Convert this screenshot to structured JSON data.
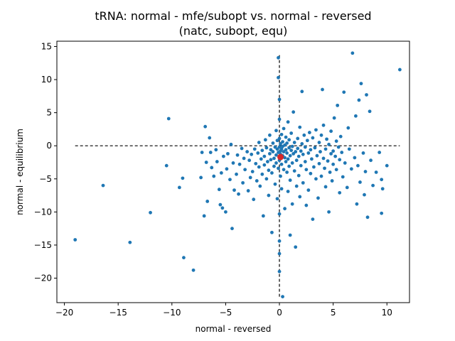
{
  "chart_data": {
    "type": "scatter",
    "title_lines": [
      "tRNA: normal - mfe/subopt vs. normal - reversed",
      "(natc, subopt, equ)"
    ],
    "xlabel": "normal - reversed",
    "ylabel": "normal - equilibrium",
    "xlim": [
      -20.7,
      12.1
    ],
    "ylim": [
      -23.7,
      15.8
    ],
    "x_ticks": [
      -20,
      -15,
      -10,
      -5,
      0,
      5,
      10
    ],
    "y_ticks": [
      -20,
      -15,
      -10,
      -5,
      0,
      5,
      10,
      15
    ],
    "reference_lines": {
      "horizontal": {
        "y": 0,
        "x_range": [
          -19.0,
          11.2
        ],
        "style": "dashed",
        "color": "#000000"
      },
      "vertical": {
        "x": 0,
        "y_range": [
          -22.8,
          14.0
        ],
        "style": "dashed",
        "color": "#000000"
      }
    },
    "point_color": "#1f77b4",
    "highlight_color": "#d62728",
    "highlight_point": {
      "x": 0.1,
      "y": -1.7
    },
    "points": [
      [
        -19.0,
        -14.2
      ],
      [
        -16.4,
        -6.0
      ],
      [
        -13.9,
        -14.6
      ],
      [
        -12.0,
        -10.1
      ],
      [
        -10.3,
        4.1
      ],
      [
        -10.5,
        -3.0
      ],
      [
        -9.3,
        -6.3
      ],
      [
        -9.0,
        -4.9
      ],
      [
        -8.9,
        -16.9
      ],
      [
        -8.0,
        -18.8
      ],
      [
        -7.3,
        -4.8
      ],
      [
        -7.2,
        -1.0
      ],
      [
        -6.9,
        2.9
      ],
      [
        -7.0,
        -10.6
      ],
      [
        -6.8,
        -2.5
      ],
      [
        -6.7,
        -8.4
      ],
      [
        -6.5,
        1.2
      ],
      [
        -6.4,
        -1.0
      ],
      [
        -6.3,
        -3.3
      ],
      [
        -6.1,
        -4.6
      ],
      [
        -5.9,
        -0.6
      ],
      [
        -5.8,
        -2.4
      ],
      [
        -5.6,
        -6.6
      ],
      [
        -5.5,
        -8.9
      ],
      [
        -5.4,
        -4.1
      ],
      [
        -5.3,
        -9.4
      ],
      [
        -5.2,
        -1.6
      ],
      [
        -5.0,
        -10.0
      ],
      [
        -4.9,
        -3.5
      ],
      [
        -4.8,
        -1.2
      ],
      [
        -4.6,
        -5.1
      ],
      [
        -4.5,
        0.2
      ],
      [
        -4.4,
        -12.5
      ],
      [
        -4.3,
        -2.6
      ],
      [
        -4.2,
        -6.7
      ],
      [
        -4.0,
        -4.3
      ],
      [
        -3.9,
        -1.4
      ],
      [
        -3.8,
        -7.3
      ],
      [
        -3.7,
        -2.8
      ],
      [
        -3.5,
        -0.4
      ],
      [
        -3.4,
        -5.6
      ],
      [
        -3.3,
        -1.9
      ],
      [
        -3.2,
        -3.6
      ],
      [
        -3.0,
        -0.9
      ],
      [
        -2.9,
        -6.8
      ],
      [
        -2.8,
        -2.2
      ],
      [
        -2.7,
        -4.8
      ],
      [
        -2.6,
        -1.3
      ],
      [
        -2.5,
        -3.9
      ],
      [
        -2.4,
        -8.1
      ],
      [
        -2.3,
        -0.5
      ],
      [
        -2.2,
        -2.7
      ],
      [
        -2.1,
        -5.3
      ],
      [
        -2.0,
        -1.1
      ],
      [
        -1.9,
        0.5
      ],
      [
        -1.9,
        -3.2
      ],
      [
        -1.8,
        -6.1
      ],
      [
        -1.7,
        -2.0
      ],
      [
        -1.6,
        -0.7
      ],
      [
        -1.6,
        -4.3
      ],
      [
        -1.5,
        -10.6
      ],
      [
        -1.4,
        -1.6
      ],
      [
        -1.4,
        -2.9
      ],
      [
        -1.3,
        0.9
      ],
      [
        -1.2,
        -5.0
      ],
      [
        -1.2,
        -0.3
      ],
      [
        -1.1,
        -2.4
      ],
      [
        -1.0,
        -3.7
      ],
      [
        -1.0,
        -7.5
      ],
      [
        -0.9,
        -1.2
      ],
      [
        -0.9,
        1.6
      ],
      [
        -0.8,
        -0.6
      ],
      [
        -0.8,
        -2.1
      ],
      [
        -0.7,
        -4.1
      ],
      [
        -0.7,
        -13.1
      ],
      [
        -0.6,
        -0.9
      ],
      [
        -0.6,
        0.4
      ],
      [
        -0.5,
        -1.9
      ],
      [
        -0.5,
        -3.1
      ],
      [
        -0.4,
        -0.2
      ],
      [
        -0.4,
        -5.8
      ],
      [
        -0.3,
        -1.4
      ],
      [
        -0.3,
        2.3
      ],
      [
        -0.3,
        -2.6
      ],
      [
        -0.2,
        -0.5
      ],
      [
        -0.2,
        -8.0
      ],
      [
        -0.2,
        0.8
      ],
      [
        -0.1,
        -1.0
      ],
      [
        -0.1,
        -3.4
      ],
      [
        -0.1,
        13.3
      ],
      [
        -0.1,
        10.3
      ],
      [
        0.0,
        -14.4
      ],
      [
        0.0,
        -19.0
      ],
      [
        0.0,
        -10.3
      ],
      [
        0.0,
        -16.3
      ],
      [
        0.0,
        4.0
      ],
      [
        0.0,
        7.0
      ],
      [
        0.0,
        1.1
      ],
      [
        0.0,
        -0.2
      ],
      [
        0.0,
        -2.2
      ],
      [
        0.1,
        -0.8
      ],
      [
        0.1,
        -1.3
      ],
      [
        0.1,
        0.3
      ],
      [
        0.1,
        -4.6
      ],
      [
        0.2,
        -0.5
      ],
      [
        0.2,
        -2.8
      ],
      [
        0.2,
        1.7
      ],
      [
        0.2,
        -6.5
      ],
      [
        0.3,
        -0.1
      ],
      [
        0.3,
        -1.5
      ],
      [
        0.3,
        -22.8
      ],
      [
        0.3,
        0.6
      ],
      [
        0.4,
        -3.6
      ],
      [
        0.4,
        -0.9
      ],
      [
        0.4,
        2.6
      ],
      [
        0.5,
        -1.8
      ],
      [
        0.5,
        0.1
      ],
      [
        0.5,
        -9.5
      ],
      [
        0.6,
        -0.6
      ],
      [
        0.6,
        -2.4
      ],
      [
        0.6,
        1.3
      ],
      [
        0.7,
        -4.0
      ],
      [
        0.7,
        -1.1
      ],
      [
        0.7,
        0.4
      ],
      [
        0.8,
        -6.9
      ],
      [
        0.8,
        -2.0
      ],
      [
        0.8,
        3.6
      ],
      [
        0.9,
        -0.3
      ],
      [
        0.9,
        -3.1
      ],
      [
        0.9,
        0.9
      ],
      [
        1.0,
        -1.5
      ],
      [
        1.0,
        -13.5
      ],
      [
        1.0,
        -5.2
      ],
      [
        1.1,
        -0.7
      ],
      [
        1.1,
        1.9
      ],
      [
        1.2,
        -2.6
      ],
      [
        1.2,
        -0.1
      ],
      [
        1.2,
        -8.8
      ],
      [
        1.3,
        -1.2
      ],
      [
        1.3,
        5.1
      ],
      [
        1.4,
        -3.8
      ],
      [
        1.4,
        0.5
      ],
      [
        1.5,
        -0.9
      ],
      [
        1.5,
        -15.3
      ],
      [
        1.6,
        -6.1
      ],
      [
        1.6,
        -2.2
      ],
      [
        1.7,
        1.1
      ],
      [
        1.7,
        -0.4
      ],
      [
        1.8,
        -4.5
      ],
      [
        1.8,
        -1.6
      ],
      [
        1.9,
        2.8
      ],
      [
        1.9,
        -7.7
      ],
      [
        2.0,
        -0.8
      ],
      [
        2.0,
        -3.0
      ],
      [
        2.1,
        0.3
      ],
      [
        2.1,
        8.2
      ],
      [
        2.2,
        -5.6
      ],
      [
        2.2,
        -1.3
      ],
      [
        2.3,
        1.6
      ],
      [
        2.4,
        -2.4
      ],
      [
        2.4,
        -0.2
      ],
      [
        2.5,
        -9.0
      ],
      [
        2.5,
        -3.6
      ],
      [
        2.6,
        0.8
      ],
      [
        2.7,
        -1.1
      ],
      [
        2.7,
        -6.7
      ],
      [
        2.8,
        2.0
      ],
      [
        2.9,
        -4.2
      ],
      [
        2.9,
        -0.6
      ],
      [
        3.0,
        -2.0
      ],
      [
        3.1,
        -11.1
      ],
      [
        3.1,
        1.2
      ],
      [
        3.2,
        -3.2
      ],
      [
        3.3,
        -0.3
      ],
      [
        3.4,
        -5.0
      ],
      [
        3.4,
        2.4
      ],
      [
        3.5,
        -1.5
      ],
      [
        3.6,
        -7.9
      ],
      [
        3.7,
        0.5
      ],
      [
        3.7,
        -2.7
      ],
      [
        3.8,
        -0.9
      ],
      [
        3.9,
        -4.6
      ],
      [
        3.9,
        1.6
      ],
      [
        4.0,
        8.5
      ],
      [
        4.1,
        -1.9
      ],
      [
        4.1,
        3.1
      ],
      [
        4.2,
        -3.4
      ],
      [
        4.3,
        -0.5
      ],
      [
        4.3,
        -6.2
      ],
      [
        4.4,
        1.0
      ],
      [
        4.5,
        -2.3
      ],
      [
        4.6,
        -10.0
      ],
      [
        4.6,
        0.2
      ],
      [
        4.7,
        -4.0
      ],
      [
        4.8,
        -1.2
      ],
      [
        4.8,
        2.2
      ],
      [
        4.9,
        -5.3
      ],
      [
        5.0,
        -0.8
      ],
      [
        5.0,
        -2.8
      ],
      [
        5.1,
        4.2
      ],
      [
        5.2,
        -1.6
      ],
      [
        5.3,
        0.7
      ],
      [
        5.3,
        -3.6
      ],
      [
        5.4,
        6.1
      ],
      [
        5.5,
        -0.2
      ],
      [
        5.6,
        -7.1
      ],
      [
        5.6,
        -2.1
      ],
      [
        5.7,
        1.4
      ],
      [
        5.8,
        -1.0
      ],
      [
        5.9,
        -4.7
      ],
      [
        6.0,
        8.1
      ],
      [
        6.1,
        -2.6
      ],
      [
        6.3,
        -6.3
      ],
      [
        6.4,
        2.7
      ],
      [
        6.5,
        -0.5
      ],
      [
        6.7,
        -3.5
      ],
      [
        6.8,
        14.0
      ],
      [
        7.0,
        -1.8
      ],
      [
        7.1,
        4.5
      ],
      [
        7.2,
        -8.8
      ],
      [
        7.3,
        -3.0
      ],
      [
        7.4,
        6.9
      ],
      [
        7.5,
        -5.5
      ],
      [
        7.6,
        9.4
      ],
      [
        7.8,
        -1.1
      ],
      [
        7.9,
        -7.4
      ],
      [
        8.0,
        -3.9
      ],
      [
        8.1,
        7.7
      ],
      [
        8.2,
        -10.8
      ],
      [
        8.4,
        5.2
      ],
      [
        8.5,
        -2.2
      ],
      [
        8.7,
        -6.0
      ],
      [
        9.0,
        -4.0
      ],
      [
        9.3,
        -1.0
      ],
      [
        9.5,
        -5.1
      ],
      [
        9.5,
        -10.2
      ],
      [
        9.6,
        -6.5
      ],
      [
        10.0,
        -3.0
      ],
      [
        11.2,
        11.5
      ]
    ]
  }
}
